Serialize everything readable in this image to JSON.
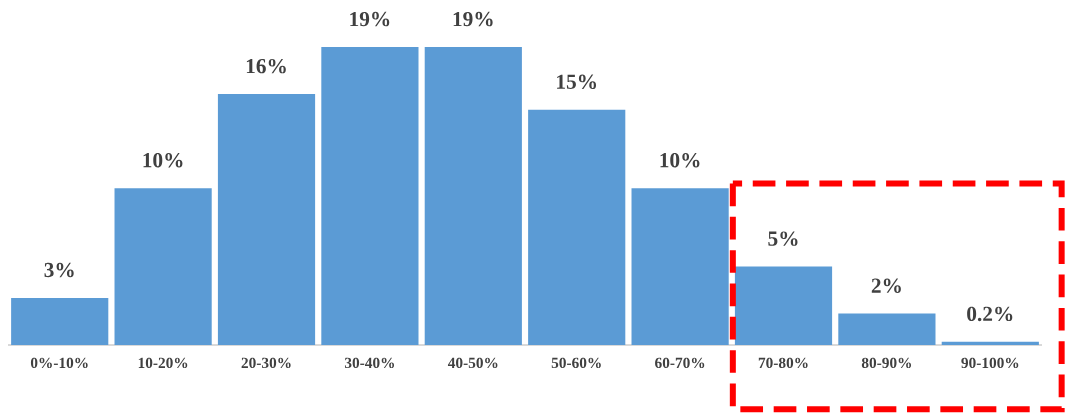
{
  "chart_data": {
    "type": "bar",
    "categories": [
      "0%-10%",
      "10-20%",
      "20-30%",
      "30-40%",
      "40-50%",
      "50-60%",
      "60-70%",
      "70-80%",
      "80-90%",
      "90-100%"
    ],
    "values": [
      3,
      10,
      16,
      19,
      19,
      15,
      10,
      5,
      2,
      0.2
    ],
    "value_labels": [
      "3%",
      "10%",
      "16%",
      "19%",
      "19%",
      "15%",
      "10%",
      "5%",
      "2%",
      "0.2%"
    ],
    "color": "#5b9bd5",
    "tick_labels": "x"
  }
}
